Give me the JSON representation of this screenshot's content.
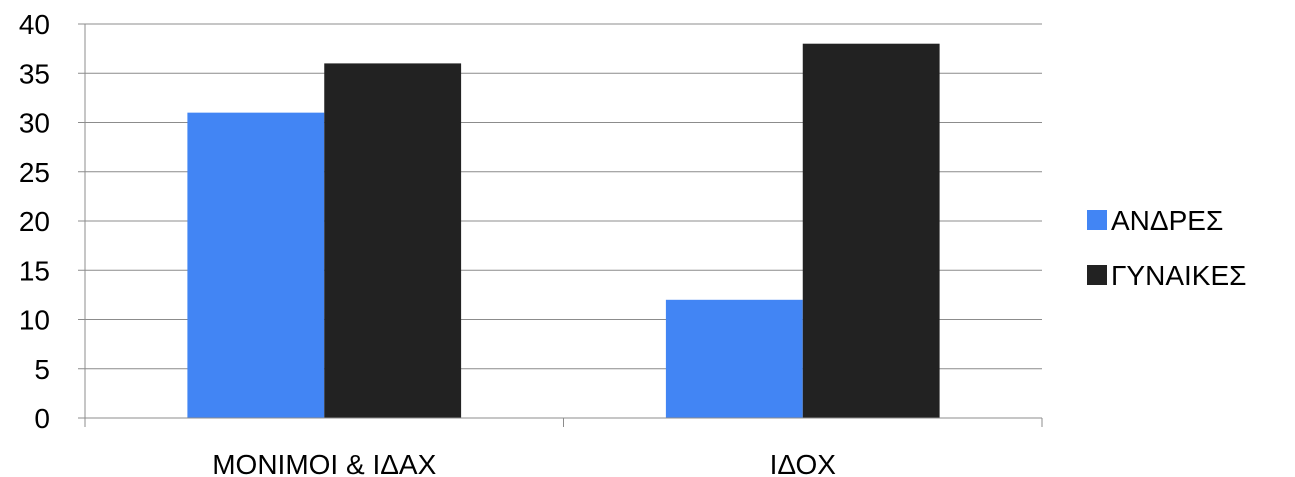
{
  "chart_data": {
    "type": "bar",
    "categories": [
      "ΜΟΝΙΜΟΙ & ΙΔΑΧ",
      "ΙΔΟΧ"
    ],
    "series": [
      {
        "name": "ΑΝΔΡΕΣ",
        "values": [
          31,
          12
        ],
        "color": "#4285f4"
      },
      {
        "name": "ΓΥΝΑΙΚΕΣ",
        "values": [
          36,
          38
        ],
        "color": "#222222"
      }
    ],
    "title": "",
    "xlabel": "",
    "ylabel": "",
    "ylim": [
      0,
      40
    ],
    "yticks": [
      0,
      5,
      10,
      15,
      20,
      25,
      30,
      35,
      40
    ],
    "grid": true,
    "legend_position": "right"
  }
}
